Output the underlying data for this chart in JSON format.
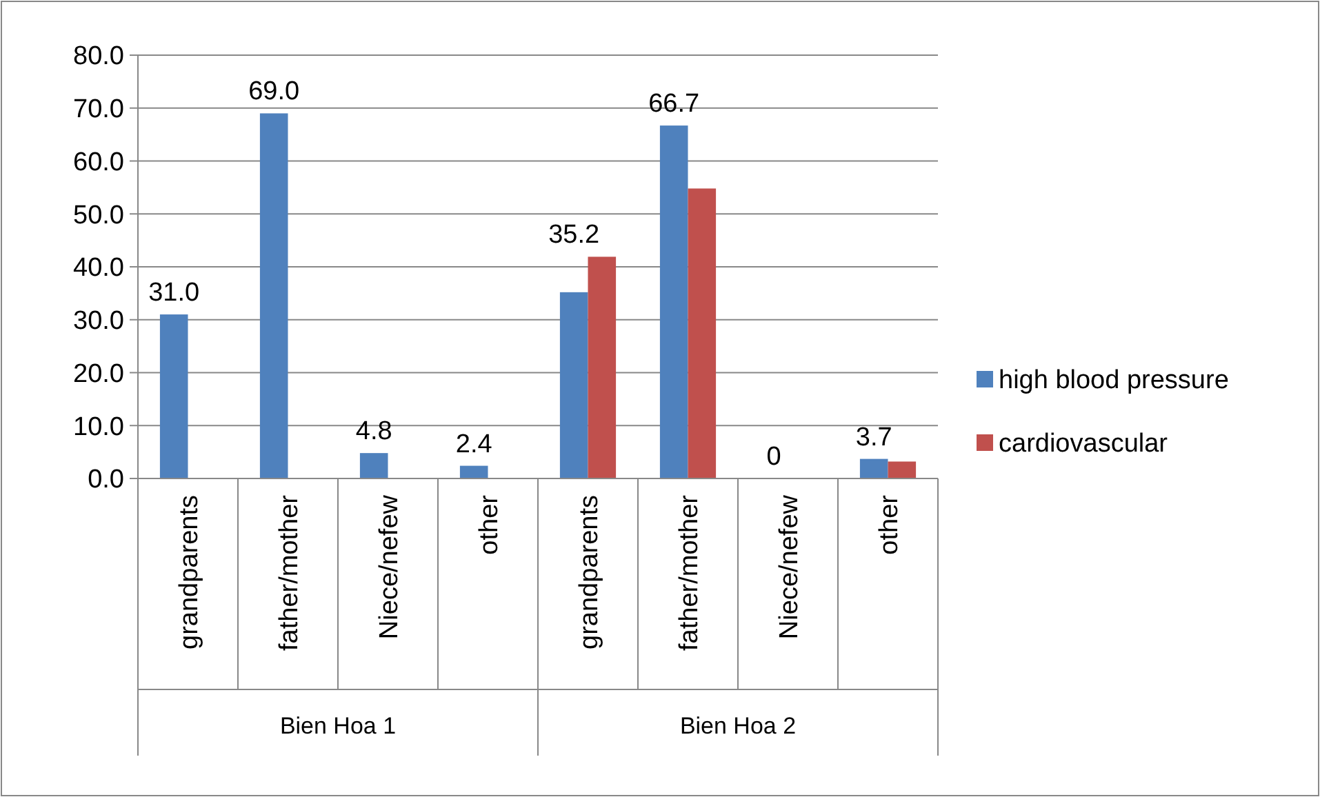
{
  "chart_data": {
    "type": "bar",
    "categories": [
      "grandparents",
      "father/mother",
      "Niece/nefew",
      "other",
      "grandparents",
      "father/mother",
      "Niece/nefew",
      "other"
    ],
    "series": [
      {
        "name": "high blood pressure",
        "color": "#4f81bd",
        "values": [
          31.0,
          69.0,
          4.8,
          2.4,
          35.2,
          66.7,
          0,
          3.7
        ],
        "value_labels": [
          "31.0",
          "69.0",
          "4.8",
          "2.4",
          "35.2",
          "66.7",
          "0",
          "3.7"
        ]
      },
      {
        "name": "cardiovascular",
        "color": "#c0504d",
        "values": [
          null,
          null,
          null,
          null,
          41.9,
          54.8,
          0,
          3.2
        ]
      }
    ],
    "annotations": [
      "Bien Hoa 1",
      "Bien Hoa 2"
    ],
    "ylim": [
      0,
      80
    ],
    "yticks": [
      {
        "value": 0,
        "label": "0.0"
      },
      {
        "value": 10,
        "label": "10.0"
      },
      {
        "value": 20,
        "label": "20.0"
      },
      {
        "value": 30,
        "label": "30.0"
      },
      {
        "value": 40,
        "label": "40.0"
      },
      {
        "value": 50,
        "label": "50.0"
      },
      {
        "value": 60,
        "label": "60.0"
      },
      {
        "value": 70,
        "label": "70.0"
      },
      {
        "value": 80,
        "label": "80.0"
      }
    ],
    "grid": "y",
    "legend": "right"
  }
}
